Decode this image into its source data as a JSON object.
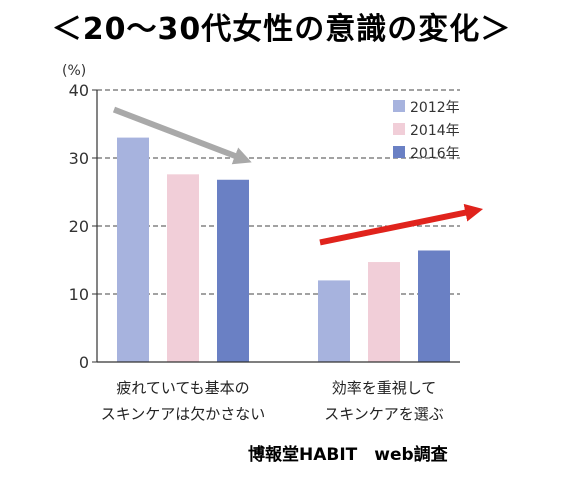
{
  "title": "＜20～30代女性の意識の変化＞",
  "source": "博報堂HABIT　web調査",
  "chart_data": {
    "type": "bar",
    "unit_label": "(%)",
    "categories": [
      [
        "疲れていても基本の",
        "スキンケアは欠かさない"
      ],
      [
        "効率を重視して",
        "スキンケアを選ぶ"
      ]
    ],
    "series": [
      {
        "name": "2012年",
        "color": "#a7b3de",
        "values": [
          33,
          12
        ]
      },
      {
        "name": "2014年",
        "color": "#f1ced8",
        "values": [
          27.6,
          14.7
        ]
      },
      {
        "name": "2016年",
        "color": "#6a80c4",
        "values": [
          26.8,
          16.4
        ]
      }
    ],
    "ylim": [
      0,
      40
    ],
    "yticks": [
      0,
      10,
      20,
      30,
      40
    ],
    "grid": true,
    "legend_position": "top-right",
    "trend_arrows": [
      {
        "group": 0,
        "direction": "down",
        "color": "#a9a9a9"
      },
      {
        "group": 1,
        "direction": "up",
        "color": "#e0231c"
      }
    ]
  }
}
